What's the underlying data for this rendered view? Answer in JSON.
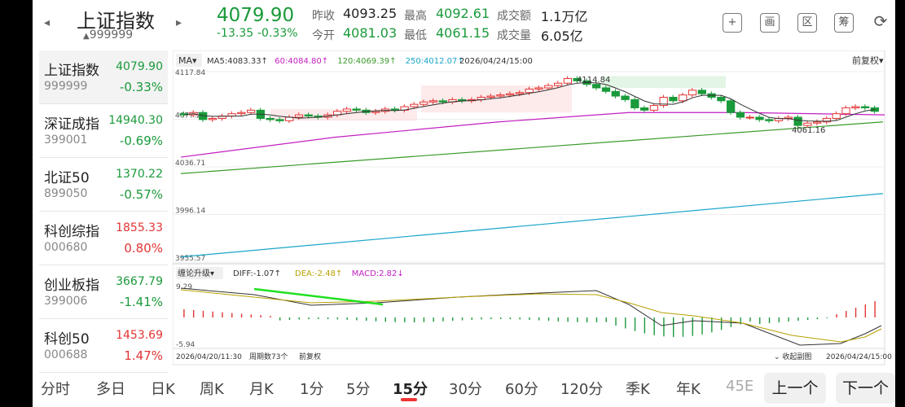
{
  "header": {
    "name": "上证指数",
    "code": "999999",
    "price": "4079.90",
    "change": "-13.35",
    "change_pct": "-0.33%",
    "stats": {
      "prev_close_label": "昨收",
      "prev_close": "4093.25",
      "open_label": "今开",
      "open": "4081.03",
      "high_label": "最高",
      "high": "4092.61",
      "low_label": "最低",
      "low": "4061.15",
      "amount_label": "成交额",
      "amount": "1.1万亿",
      "volume_label": "成交量",
      "volume": "6.05亿"
    },
    "tools": [
      {
        "icon": "add-icon",
        "glyph": "+"
      },
      {
        "icon": "draw-icon",
        "glyph": "画"
      },
      {
        "icon": "range-icon",
        "glyph": "区"
      },
      {
        "icon": "chip-icon",
        "glyph": "筹"
      },
      {
        "icon": "rotate-screen-icon",
        "glyph": "⟳"
      }
    ],
    "colors": {
      "up": "#e33333",
      "down": "#1a9a3a"
    }
  },
  "sidebar": {
    "items": [
      {
        "name": "上证指数",
        "code": "999999",
        "price": "4079.90",
        "pct": "-0.33%",
        "dir": "down"
      },
      {
        "name": "深证成指",
        "code": "399001",
        "price": "14940.30",
        "pct": "-0.69%",
        "dir": "down"
      },
      {
        "name": "北证50",
        "code": "899050",
        "price": "1370.22",
        "pct": "-0.57%",
        "dir": "down"
      },
      {
        "name": "科创综指",
        "code": "000680",
        "price": "1855.33",
        "pct": "0.80%",
        "dir": "up"
      },
      {
        "name": "创业板指",
        "code": "399006",
        "price": "3667.79",
        "pct": "-1.41%",
        "dir": "down"
      },
      {
        "name": "科创50",
        "code": "000688",
        "price": "1453.69",
        "pct": "1.47%",
        "dir": "up"
      }
    ]
  },
  "chart": {
    "indicator_select": "MA",
    "ma_legend": [
      {
        "text": "MA5:4083.33",
        "color": "#333333"
      },
      {
        "text": "60:4084.80",
        "color": "#c21fc2"
      },
      {
        "text": "120:4069.39",
        "color": "#3a9a2a"
      },
      {
        "text": "250:4012.07",
        "color": "#1aa5c9"
      }
    ],
    "datetime": "2026/04/24/15:00",
    "adjust": "前复权",
    "y_ticks": [
      "4117.84",
      "4077.27",
      "4036.71",
      "3996.14",
      "3955.57"
    ],
    "high_label": "4114.84",
    "low_label": "4061.16",
    "sub_selector": "缠论升级",
    "macd_legend": [
      {
        "text": "DIFF:-1.07",
        "color": "#333333"
      },
      {
        "text": "DEA:-2.48",
        "color": "#b8a000"
      },
      {
        "text": "MACD:2.82",
        "color": "#c21fc2"
      }
    ],
    "macd_top": "9.29",
    "macd_bottom": "-5.94",
    "start_date": "2026/04/20/11:30",
    "period_count": "周期数73个",
    "adjust_bottom": "前复权",
    "collapse": "收起副图",
    "end_date": "2026/04/24/15:00"
  },
  "chart_data": {
    "type": "candlestick",
    "ylim": [
      3955.57,
      4117.84
    ],
    "candles": [
      4081,
      4083,
      4077,
      4078,
      4080,
      4082,
      4083,
      4085,
      4078,
      4077,
      4076,
      4079,
      4081,
      4080,
      4079,
      4081,
      4084,
      4086,
      4085,
      4083,
      4084,
      4086,
      4085,
      4088,
      4090,
      4092,
      4093,
      4092,
      4094,
      4093,
      4094,
      4096,
      4097,
      4098,
      4099,
      4100,
      4103,
      4104,
      4106,
      4108,
      4112,
      4110,
      4107,
      4104,
      4101,
      4097,
      4094,
      4087,
      4085,
      4089,
      4096,
      4093,
      4098,
      4102,
      4099,
      4096,
      4093,
      4083,
      4079,
      4079,
      4077,
      4076,
      4078,
      4079,
      4072,
      4074,
      4075,
      4078,
      4082,
      4087,
      4088,
      4087,
      4084
    ],
    "ma60": [
      4045,
      4081
    ],
    "ma120": [
      4031,
      4075
    ],
    "ma250": [
      3960,
      4014
    ]
  }
}
